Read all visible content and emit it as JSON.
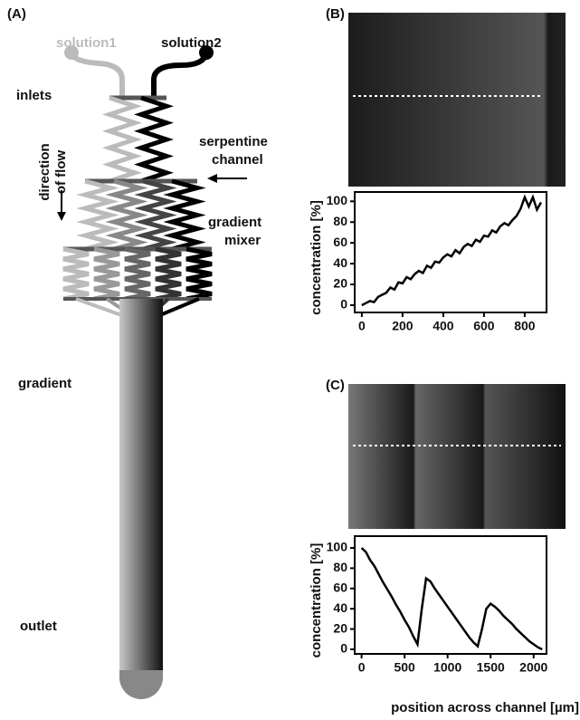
{
  "diagram": {
    "panel": "(A)",
    "solution1": "solution1",
    "solution2": "solution2",
    "inlets": "inlets",
    "serpentine": [
      "serpentine",
      "channel"
    ],
    "flow": [
      "direction",
      "of flow"
    ],
    "mixer": [
      "gradient",
      "mixer"
    ],
    "gradient": "gradient",
    "outlet": "outlet"
  },
  "chart_data": [
    {
      "type": "line",
      "panel": "(B)",
      "ylabel": "concentration [%]",
      "color": "#000000",
      "x": [
        0,
        20,
        40,
        60,
        80,
        100,
        120,
        140,
        160,
        180,
        200,
        220,
        240,
        260,
        280,
        300,
        320,
        340,
        360,
        380,
        400,
        420,
        440,
        460,
        480,
        500,
        520,
        540,
        560,
        580,
        600,
        620,
        640,
        660,
        680,
        700,
        720,
        740,
        760,
        780,
        800,
        820,
        840,
        860,
        880
      ],
      "values": [
        0,
        2,
        4,
        3,
        8,
        10,
        12,
        17,
        15,
        22,
        21,
        27,
        25,
        30,
        33,
        31,
        38,
        36,
        42,
        41,
        46,
        49,
        47,
        53,
        50,
        56,
        59,
        57,
        63,
        61,
        67,
        66,
        72,
        70,
        76,
        79,
        77,
        82,
        86,
        93,
        104,
        95,
        104,
        92,
        99
      ],
      "xlim": [
        -35,
        907
      ],
      "ylim": [
        -7,
        109
      ],
      "xticks": [
        0,
        200,
        400,
        600,
        800
      ],
      "yticks": [
        0,
        20,
        40,
        60,
        80,
        100
      ]
    },
    {
      "type": "line",
      "panel": "(C)",
      "ylabel": "concentration [%]",
      "xlabel": "position across channel [µm]",
      "color": "#000000",
      "x": [
        0,
        50,
        100,
        150,
        200,
        250,
        300,
        350,
        400,
        450,
        500,
        550,
        600,
        650,
        700,
        750,
        800,
        850,
        900,
        950,
        1000,
        1050,
        1100,
        1150,
        1200,
        1250,
        1300,
        1350,
        1400,
        1450,
        1500,
        1550,
        1600,
        1650,
        1700,
        1750,
        1800,
        1850,
        1900,
        1950,
        2000,
        2050,
        2100
      ],
      "values": [
        100,
        96,
        88,
        82,
        74,
        66,
        59,
        52,
        44,
        37,
        29,
        22,
        13,
        5,
        40,
        70,
        67,
        60,
        54,
        48,
        42,
        36,
        30,
        24,
        18,
        12,
        7,
        3,
        20,
        40,
        45,
        42,
        38,
        33,
        29,
        25,
        20,
        16,
        12,
        8,
        5,
        2,
        0
      ],
      "xlim": [
        -80,
        2150
      ],
      "ylim": [
        -4.5,
        111.6
      ],
      "xticks": [
        0,
        500,
        1000,
        1500,
        2000
      ],
      "yticks": [
        0,
        20,
        40,
        60,
        80,
        100
      ]
    }
  ]
}
